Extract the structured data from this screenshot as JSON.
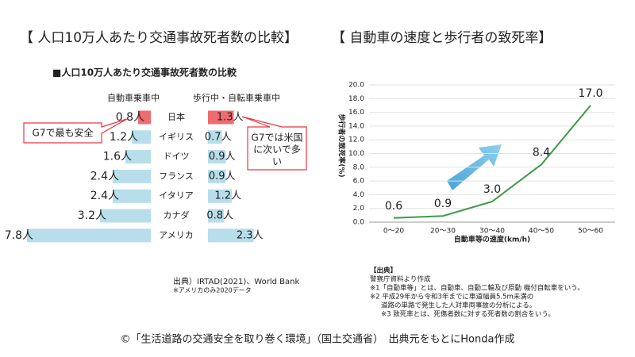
{
  "chart_data": [
    {
      "type": "bar",
      "title": "【 人口10万人あたり交通事故死者数の比較】",
      "subtitle": "■人口10万人あたり交通事故死者数の比較",
      "categories": [
        "日本",
        "イギリス",
        "ドイツ",
        "フランス",
        "イタリア",
        "カナダ",
        "アメリカ"
      ],
      "series": [
        {
          "name": "自動車乗車中",
          "values": [
            0.8,
            1.2,
            1.6,
            2.4,
            2.4,
            3.2,
            7.8
          ],
          "value_labels": [
            "0.8人",
            "1.2人",
            "1.6人",
            "2.4人",
            "2.4人",
            "3.2人",
            "7.8人"
          ],
          "colors": [
            "#e8393f",
            "#9fd3e3",
            "#9fd3e3",
            "#9fd3e3",
            "#9fd3e3",
            "#9fd3e3",
            "#9fd3e3"
          ]
        },
        {
          "name": "歩行中・自転車乗車中",
          "values": [
            1.3,
            0.7,
            0.9,
            0.9,
            1.2,
            0.8,
            2.3
          ],
          "value_labels": [
            "1.3人",
            "0.7人",
            "0.9人",
            "0.9人",
            "1.2人",
            "0.8人",
            "2.3人"
          ],
          "colors": [
            "#e8393f",
            "#9fd3e3",
            "#9fd3e3",
            "#9fd3e3",
            "#9fd3e3",
            "#9fd3e3",
            "#9fd3e3"
          ]
        }
      ],
      "annotations": [
        [
          "G7で最も安全"
        ],
        [
          "G7では米国",
          "に次いで多",
          "い"
        ]
      ],
      "source": [
        "出典）IRTAD(2021)、World Bank",
        "※アメリカのみ2020データ"
      ]
    },
    {
      "type": "line",
      "title": "【 自動車の速度と歩行者の致死率】",
      "categories": [
        "0〜20",
        "20〜30",
        "30〜40",
        "40〜50",
        "50〜60"
      ],
      "values": [
        0.6,
        0.9,
        3.0,
        8.4,
        17.0
      ],
      "value_labels": [
        "0.6",
        "0.9",
        "3.0",
        "8.4",
        "17.0"
      ],
      "color": "#3f9a4b",
      "xlabel": "自動車等の速度(km/h)",
      "ylabel": "歩行者の致死率(%)",
      "ylim": [
        0,
        20
      ],
      "yticks": [
        {
          "value": 0,
          "label": "0.0"
        },
        {
          "value": 2,
          "label": "2.0"
        },
        {
          "value": 4,
          "label": "4.0"
        },
        {
          "value": 6,
          "label": "6.0"
        },
        {
          "value": 8,
          "label": "8.0"
        },
        {
          "value": 10,
          "label": "10.0"
        },
        {
          "value": 12,
          "label": "12.0"
        },
        {
          "value": 14,
          "label": "14.0"
        },
        {
          "value": 16,
          "label": "16.0"
        },
        {
          "value": 18,
          "label": "18.0"
        },
        {
          "value": 20,
          "label": "20.0"
        }
      ],
      "grid": true,
      "notes": [
        "【出典】",
        "警察庁資料より作成",
        "※1「自動車等」とは、自動車、自動二輪及び原動 機付自転車をいう。",
        "※2 平成29年から令和3年までに車道幅員5.5m未満の",
        "道路の単路で発生した人対車両事故の分析による。",
        "※3 致死率とは、死傷者数に対する死者数の割合をいう。"
      ]
    }
  ],
  "caption": "©「生活道路の交通安全を取り巻く環境」（国土交通省）　出典元をもとにHonda作成"
}
